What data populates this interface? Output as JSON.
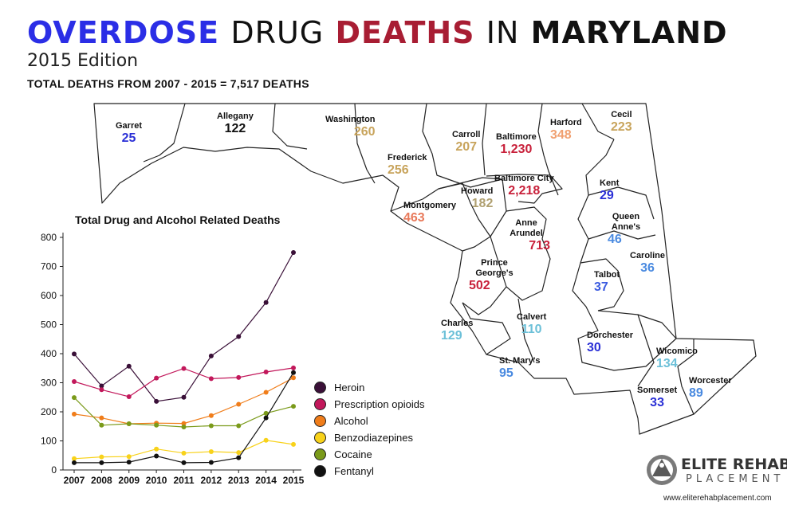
{
  "header": {
    "title_part1": "OVERDOSE",
    "title_part2": "DRUG",
    "title_part3": "DEATHS",
    "title_part4": "IN",
    "title_part5": "MARYLAND",
    "edition": "2015 Edition",
    "subtitle": "TOTAL DEATHS FROM 2007 - 2015 = 7,517 DEATHS"
  },
  "counties": [
    {
      "id": "garret",
      "name": "Garret",
      "value": "25",
      "color": "#2a2fd6"
    },
    {
      "id": "allegany",
      "name": "Allegany",
      "value": "122",
      "color": "#111111"
    },
    {
      "id": "washington",
      "name": "Washington",
      "value": "260",
      "color": "#c8a45c"
    },
    {
      "id": "frederick",
      "name": "Frederick",
      "value": "256",
      "color": "#c8a45c"
    },
    {
      "id": "carroll",
      "name": "Carroll",
      "value": "207",
      "color": "#c8a45c"
    },
    {
      "id": "baltimore",
      "name": "Baltimore",
      "value": "1,230",
      "color": "#c8203a"
    },
    {
      "id": "harford",
      "name": "Harford",
      "value": "348",
      "color": "#f0a070"
    },
    {
      "id": "cecil",
      "name": "Cecil",
      "value": "223",
      "color": "#c8a45c"
    },
    {
      "id": "baltimore-city",
      "name": "Baltimore City",
      "value": "2,218",
      "color": "#c8203a"
    },
    {
      "id": "howard",
      "name": "Howard",
      "value": "182",
      "color": "#b0a070"
    },
    {
      "id": "montgomery",
      "name": "Montgomery",
      "value": "463",
      "color": "#e8795a"
    },
    {
      "id": "anne-arundel",
      "name": "Anne Arundel",
      "value": "713",
      "color": "#c8203a"
    },
    {
      "id": "kent",
      "name": "Kent",
      "value": "29",
      "color": "#2a2fd6"
    },
    {
      "id": "queen-annes",
      "name": "Queen Anne's",
      "value": "46",
      "color": "#4a8ae0"
    },
    {
      "id": "caroline",
      "name": "Caroline",
      "value": "36",
      "color": "#4a8ae0"
    },
    {
      "id": "talbot",
      "name": "Talbot",
      "value": "37",
      "color": "#3a5ae0"
    },
    {
      "id": "prince-georges",
      "name": "Prince George's",
      "value": "502",
      "color": "#c8203a"
    },
    {
      "id": "charles",
      "name": "Charles",
      "value": "129",
      "color": "#6cc0d8"
    },
    {
      "id": "calvert",
      "name": "Calvert",
      "value": "110",
      "color": "#6cc0d8"
    },
    {
      "id": "st-marys",
      "name": "St. Mary's",
      "value": "95",
      "color": "#4a8ae0"
    },
    {
      "id": "dorchester",
      "name": "Dorchester",
      "value": "30",
      "color": "#2a2fd6"
    },
    {
      "id": "wicomico",
      "name": "Wicomico",
      "value": "134",
      "color": "#6cc0d8"
    },
    {
      "id": "somerset",
      "name": "Somerset",
      "value": "33",
      "color": "#2a2fd6"
    },
    {
      "id": "worcester",
      "name": "Worcester",
      "value": "89",
      "color": "#4a8ae0"
    }
  ],
  "chart_data": {
    "type": "line",
    "title": "Total Drug and Alcohol Related Deaths",
    "x": [
      "2007",
      "2008",
      "2009",
      "2010",
      "2011",
      "2012",
      "2013",
      "2014",
      "2015"
    ],
    "ylim": [
      0,
      800
    ],
    "yticks": [
      "0",
      "100",
      "200",
      "300",
      "400",
      "500",
      "600",
      "700",
      "800"
    ],
    "xlabel": "",
    "ylabel": "",
    "legend_position": "right",
    "series": [
      {
        "name": "Heroin",
        "color": "#3a1038",
        "values": [
          399,
          289,
          357,
          236,
          250,
          392,
          459,
          576,
          748
        ]
      },
      {
        "name": "Prescription opioids",
        "color": "#c2185b",
        "values": [
          304,
          276,
          252,
          316,
          349,
          314,
          318,
          337,
          351
        ]
      },
      {
        "name": "Alcohol",
        "color": "#f07d1a",
        "values": [
          192,
          179,
          159,
          161,
          160,
          187,
          226,
          267,
          317
        ]
      },
      {
        "name": "Benzodiazepines",
        "color": "#f8d21a",
        "values": [
          39,
          45,
          46,
          72,
          58,
          63,
          60,
          102,
          88
        ]
      },
      {
        "name": "Cocaine",
        "color": "#7a9a1a",
        "values": [
          249,
          154,
          159,
          154,
          148,
          152,
          152,
          195,
          219
        ]
      },
      {
        "name": "Fentanyl",
        "color": "#111111",
        "values": [
          25,
          25,
          27,
          48,
          25,
          26,
          42,
          179,
          335
        ]
      }
    ]
  },
  "brand": {
    "name": "ELITE REHAB",
    "sub": "PLACEMENT",
    "url": "www.eliterehabplacement.com"
  }
}
